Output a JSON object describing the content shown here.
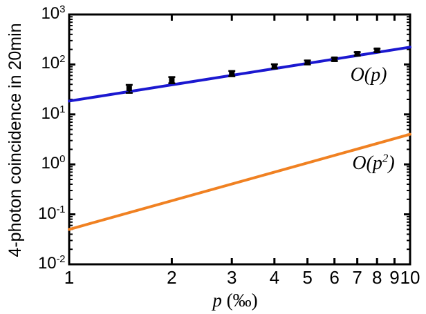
{
  "figure": {
    "background": "#ffffff",
    "ylabel": "4-photon coincidence in 20min",
    "xlabel": {
      "var": "p",
      "unit": " (‰)"
    },
    "annotations": {
      "o_p": "O(p)",
      "o_p2": {
        "prefix": "O(p",
        "sup": "2",
        "suffix": ")"
      }
    }
  },
  "chart_data": {
    "type": "scatter",
    "title": "",
    "xlabel": "p (‰)",
    "ylabel": "4-photon coincidence in 20min",
    "x_axis": {
      "scale": "log",
      "range": [
        1,
        10
      ],
      "ticks": [
        1,
        2,
        3,
        4,
        5,
        6,
        7,
        8,
        9,
        10
      ],
      "tick_labels": [
        "1",
        "2",
        "3",
        "4",
        "5",
        "6",
        "7",
        "8",
        "9",
        "10"
      ]
    },
    "y_axis": {
      "scale": "log",
      "range": [
        0.01,
        1000
      ],
      "tick_values": [
        1000,
        100,
        10,
        1,
        0.1,
        0.01
      ],
      "tick_labels": [
        {
          "base": "10",
          "exp": "3"
        },
        {
          "base": "10",
          "exp": "2"
        },
        {
          "base": "10",
          "exp": "1"
        },
        {
          "base": "10",
          "exp": "0"
        },
        {
          "base": "10",
          "exp": "-1"
        },
        {
          "base": "10",
          "exp": "-2"
        }
      ],
      "minor_tick_multiples": [
        2,
        3,
        4,
        5,
        6,
        7,
        8,
        9
      ]
    },
    "grid": false,
    "legend": "none (in-plot text annotations O(p) and O(p²))",
    "series": [
      {
        "name": "O(p) scaling line",
        "type": "line",
        "color": "#1b18d0",
        "x": [
          1,
          10
        ],
        "y": [
          18.5,
          222
        ]
      },
      {
        "name": "O(p2) scaling line",
        "type": "line",
        "color": "#f08122",
        "x": [
          1,
          10
        ],
        "y": [
          0.05,
          4.0
        ]
      },
      {
        "name": "measured 4-photon coincidence counts",
        "type": "errorbar-scatter",
        "color": "#000000",
        "marker": "square",
        "points": [
          {
            "x": 1.5,
            "y": 33,
            "err": 6
          },
          {
            "x": 2,
            "y": 49,
            "err": 7
          },
          {
            "x": 3,
            "y": 66,
            "err": 8
          },
          {
            "x": 4,
            "y": 92,
            "err": 9
          },
          {
            "x": 5,
            "y": 110,
            "err": 10
          },
          {
            "x": 6,
            "y": 127,
            "err": 10
          },
          {
            "x": 7,
            "y": 163,
            "err": 13
          },
          {
            "x": 8,
            "y": 192,
            "err": 15
          }
        ]
      }
    ]
  }
}
